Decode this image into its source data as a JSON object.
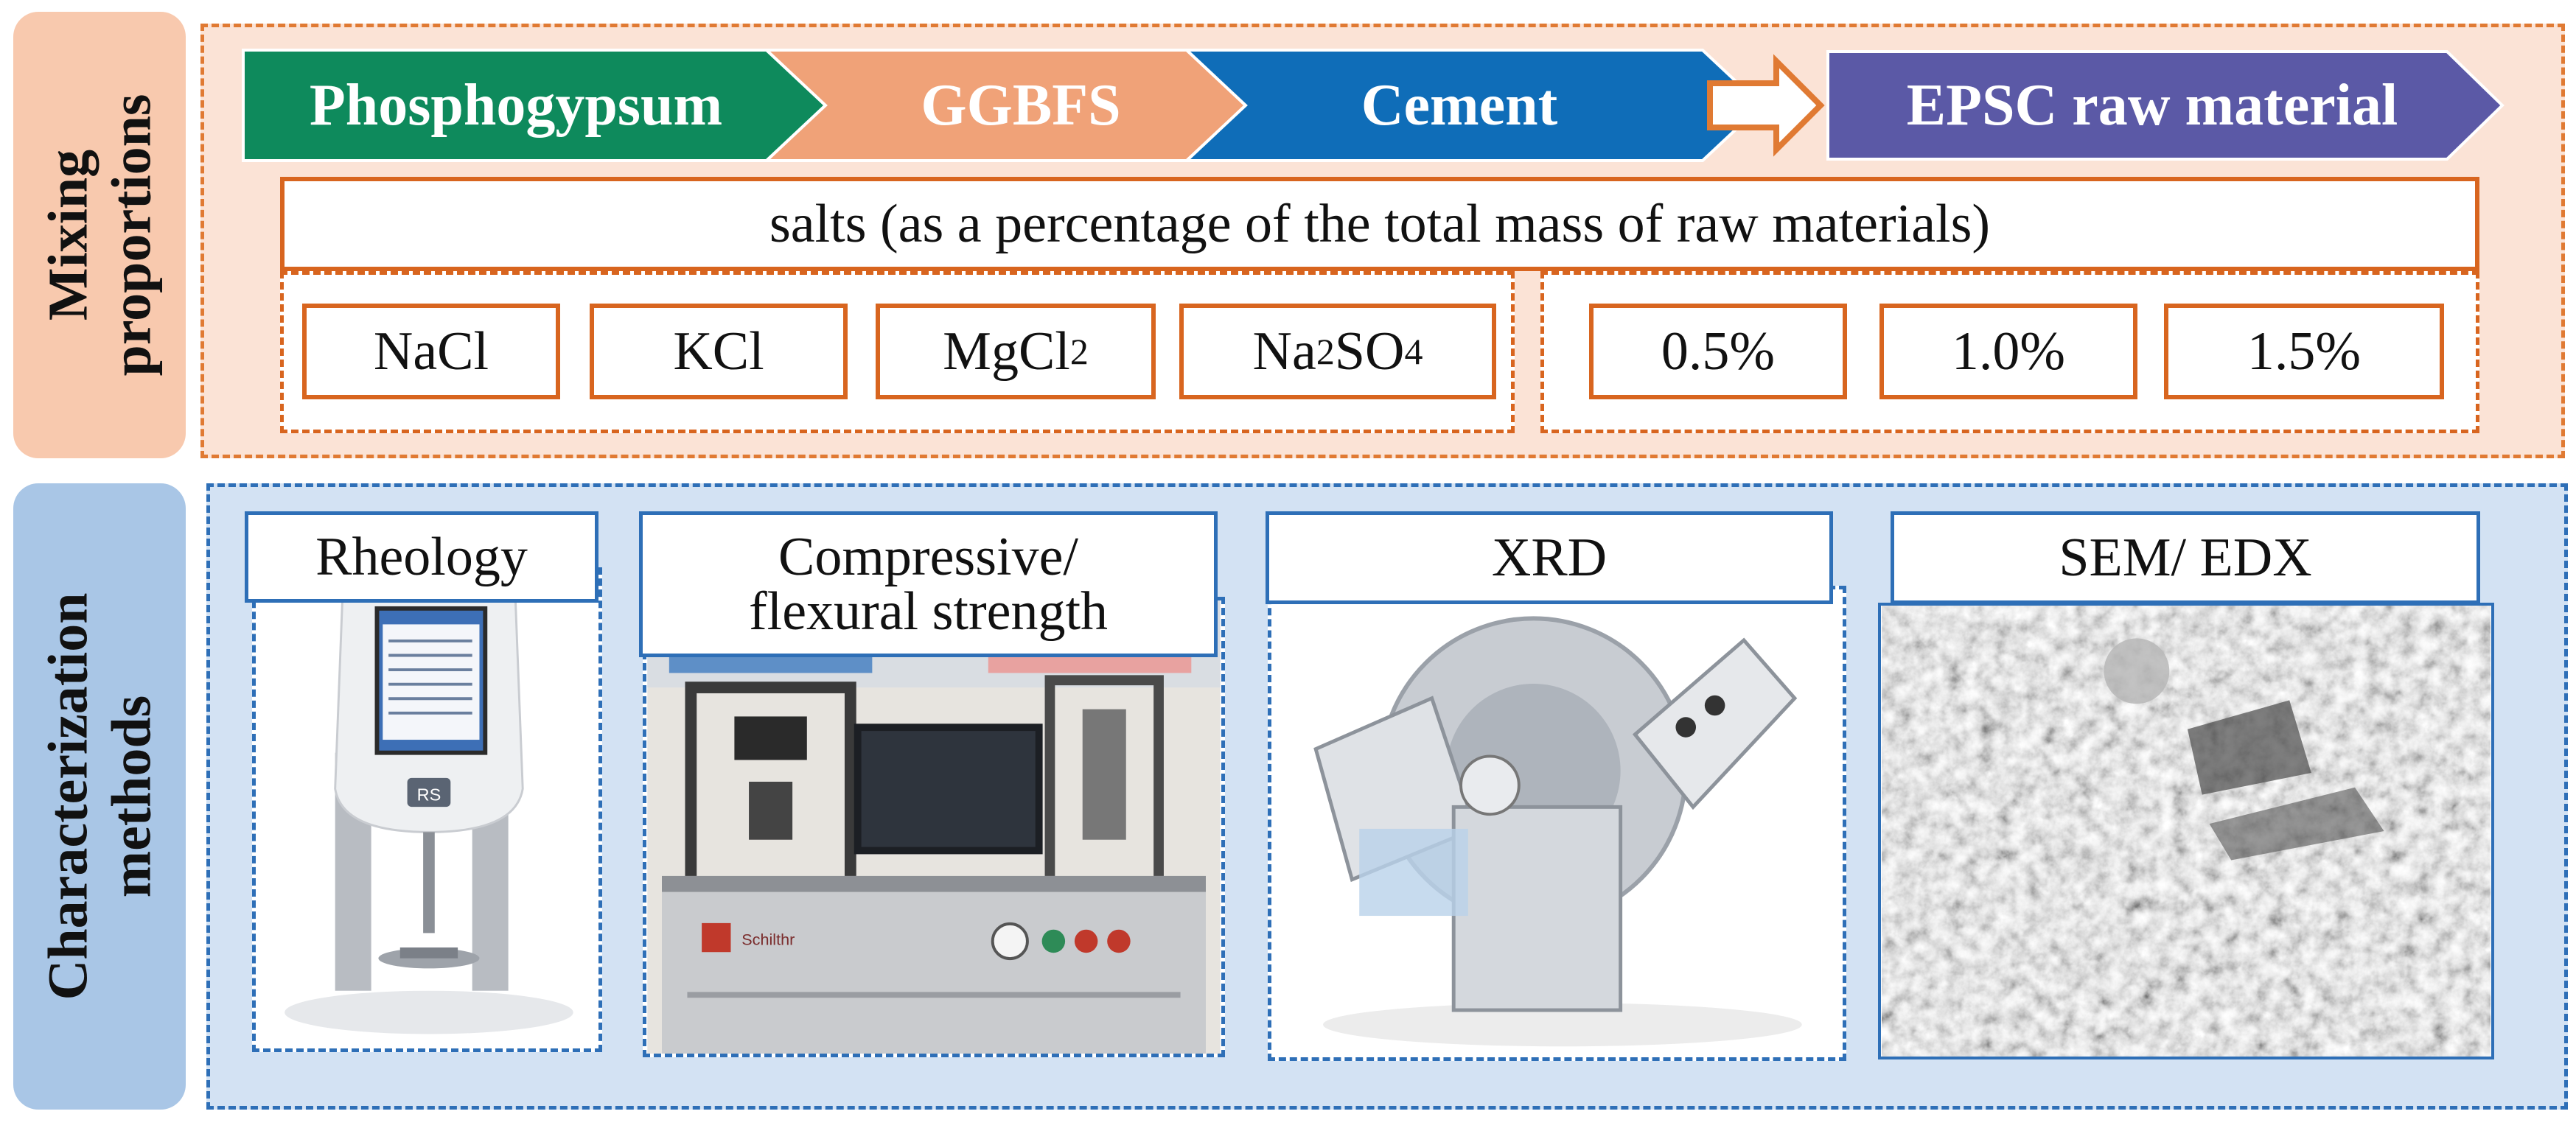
{
  "side_labels": {
    "top": [
      "Mixing",
      "proportions"
    ],
    "bottom": [
      "Characterization",
      "methods"
    ]
  },
  "flow": {
    "steps": [
      "Phosphogypsum",
      "GGBFS",
      "Cement"
    ],
    "result": "EPSC raw material",
    "colors": {
      "phosphogypsum": "#0e8a5c",
      "ggbfs": "#f0a278",
      "cement": "#0f6db8",
      "result": "#5b59a6",
      "arrow": "#e07a33"
    }
  },
  "salts": {
    "title": "salts (as a percentage of the total mass of raw materials)",
    "types": [
      {
        "base": "NaCl",
        "sub": "",
        "tail": "",
        "sub2": ""
      },
      {
        "base": "KCl",
        "sub": "",
        "tail": "",
        "sub2": ""
      },
      {
        "base": "MgCl",
        "sub": "2",
        "tail": "",
        "sub2": ""
      },
      {
        "base": "Na",
        "sub": "2",
        "tail": "SO",
        "sub2": "4"
      }
    ],
    "dosages": [
      "0.5%",
      "1.0%",
      "1.5%"
    ]
  },
  "methods": {
    "labels": [
      "Rheology",
      "Compressive/",
      "flexural strength",
      "XRD",
      "SEM/ EDX"
    ],
    "instrument_texts": [
      "RS",
      "Schilthr"
    ]
  }
}
